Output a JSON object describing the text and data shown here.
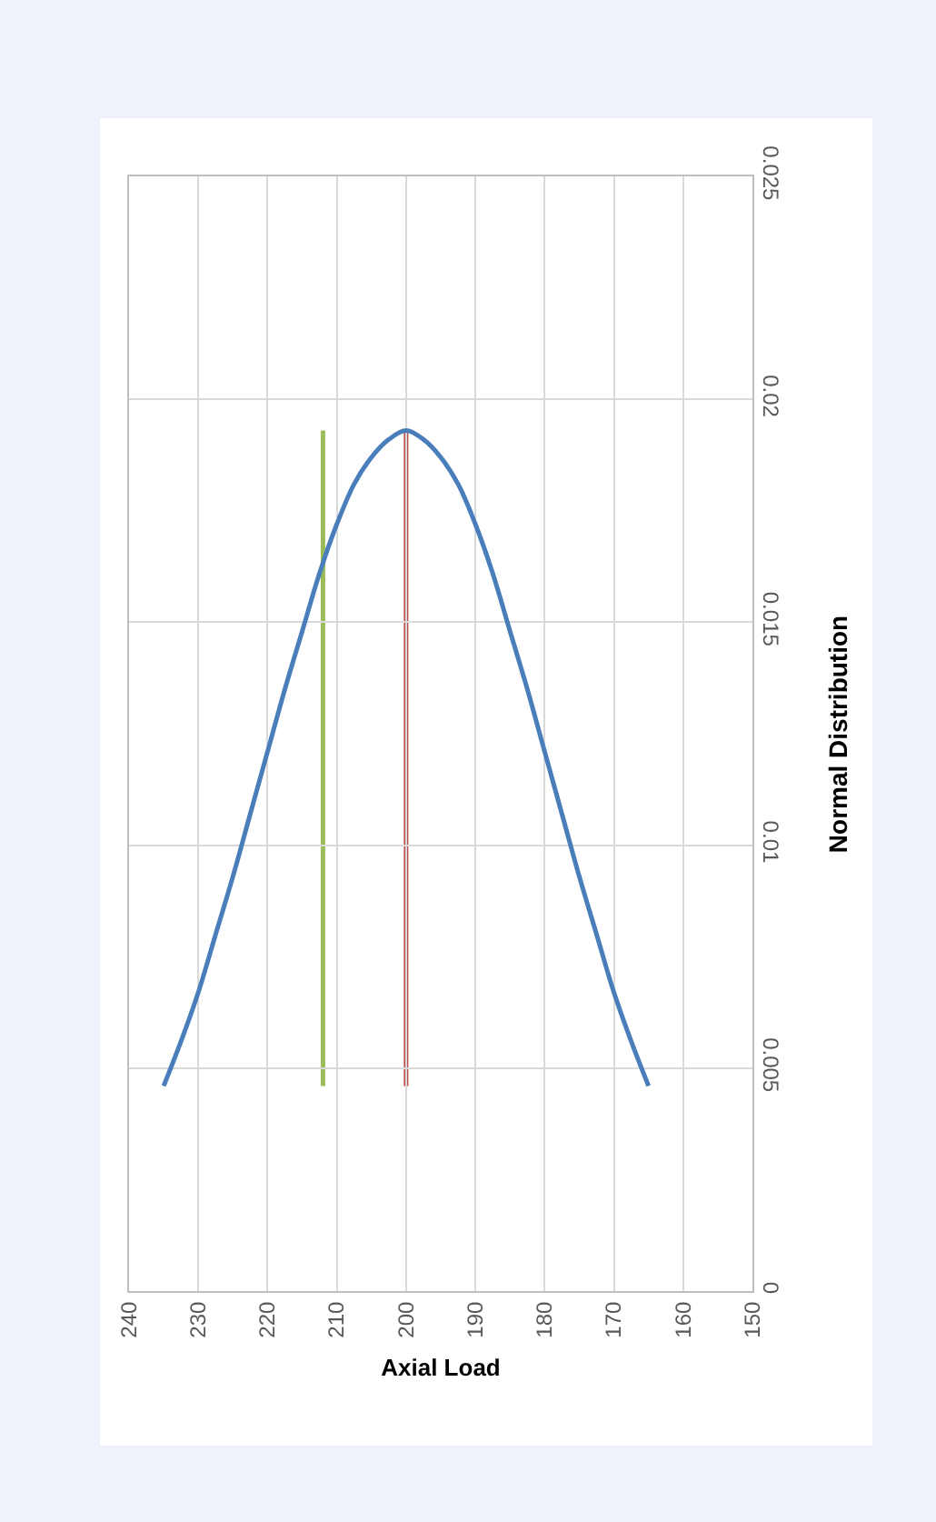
{
  "chart_data": {
    "type": "line",
    "title": "Normal Distribution",
    "xlabel": "Axial Load",
    "x": [
      165,
      167.5,
      170,
      172.5,
      175,
      177.5,
      180,
      182.5,
      185,
      187.5,
      190,
      192.5,
      195,
      197.5,
      200,
      202.5,
      205,
      207.5,
      210,
      212.5,
      215,
      217.5,
      220,
      222.5,
      225,
      227.5,
      230,
      232.5,
      235
    ],
    "series": [
      {
        "color": "#4a7ebb",
        "values": [
          0.0046,
          0.0056,
          0.0067,
          0.008,
          0.0093,
          0.0107,
          0.0121,
          0.0135,
          0.0148,
          0.0161,
          0.0172,
          0.0181,
          0.0187,
          0.0191,
          0.0193,
          0.0191,
          0.0187,
          0.0181,
          0.0172,
          0.0161,
          0.0148,
          0.0135,
          0.0121,
          0.0107,
          0.0093,
          0.008,
          0.0067,
          0.0056,
          0.0046
        ]
      }
    ],
    "ref_lines": [
      {
        "axis": "x",
        "value": 200,
        "color": "#c0504d"
      },
      {
        "axis": "x",
        "value": 212,
        "color": "#9bbb59"
      }
    ],
    "xlim": [
      240,
      150
    ],
    "xticks": [
      240,
      230,
      220,
      210,
      200,
      190,
      180,
      170,
      160,
      150
    ],
    "ylim": [
      0,
      0.025
    ],
    "yticks": [
      0,
      0.005,
      0.01,
      0.015,
      0.02,
      0.025
    ],
    "grid": true,
    "marker": "none"
  }
}
